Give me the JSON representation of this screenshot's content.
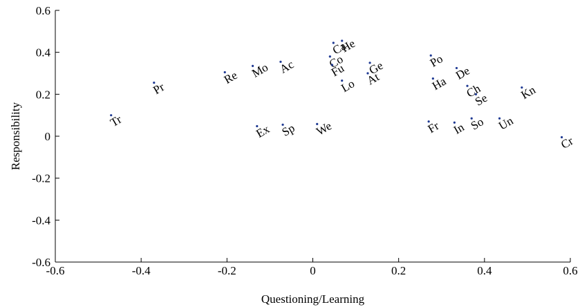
{
  "chart_data": {
    "type": "scatter",
    "xlabel": "Questioning/Learning",
    "ylabel": "Responsibility",
    "xlim": [
      -0.6,
      0.6
    ],
    "ylim": [
      -0.6,
      0.6
    ],
    "xticks": [
      -0.6,
      -0.4,
      -0.2,
      0,
      0.2,
      0.4,
      0.6
    ],
    "xtick_labels": [
      "-0.6",
      "-0.4",
      "-0.2",
      "0",
      "0.2",
      "0.4",
      "0.6"
    ],
    "yticks": [
      -0.6,
      -0.4,
      -0.2,
      0,
      0.2,
      0.4,
      0.6
    ],
    "ytick_labels": [
      "-0.6",
      "-0.4",
      "-0.2",
      "0",
      "0.2",
      "0.4",
      "0.6"
    ],
    "grid": false,
    "label_rotation": -30,
    "points": [
      {
        "label": "Tr",
        "x": -0.47,
        "y": 0.1
      },
      {
        "label": "Pr",
        "x": -0.37,
        "y": 0.255
      },
      {
        "label": "Re",
        "x": -0.205,
        "y": 0.305
      },
      {
        "label": "Mo",
        "x": -0.14,
        "y": 0.335
      },
      {
        "label": "Ac",
        "x": -0.075,
        "y": 0.355
      },
      {
        "label": "Ex",
        "x": -0.13,
        "y": 0.048
      },
      {
        "label": "Sp",
        "x": -0.07,
        "y": 0.055
      },
      {
        "label": "We",
        "x": 0.01,
        "y": 0.058
      },
      {
        "label": "Ca",
        "x": 0.048,
        "y": 0.445
      },
      {
        "label": "He",
        "x": 0.068,
        "y": 0.455
      },
      {
        "label": "Co",
        "x": 0.04,
        "y": 0.38
      },
      {
        "label": "Fu",
        "x": 0.045,
        "y": 0.34
      },
      {
        "label": "Lo",
        "x": 0.068,
        "y": 0.265
      },
      {
        "label": "At",
        "x": 0.128,
        "y": 0.3
      },
      {
        "label": "Ge",
        "x": 0.133,
        "y": 0.35
      },
      {
        "label": "Po",
        "x": 0.275,
        "y": 0.385
      },
      {
        "label": "Ha",
        "x": 0.28,
        "y": 0.275
      },
      {
        "label": "De",
        "x": 0.335,
        "y": 0.325
      },
      {
        "label": "Ch",
        "x": 0.36,
        "y": 0.24
      },
      {
        "label": "Se",
        "x": 0.38,
        "y": 0.2
      },
      {
        "label": "Kn",
        "x": 0.487,
        "y": 0.232
      },
      {
        "label": "Fr",
        "x": 0.27,
        "y": 0.07
      },
      {
        "label": "In",
        "x": 0.33,
        "y": 0.065
      },
      {
        "label": "So",
        "x": 0.37,
        "y": 0.085
      },
      {
        "label": "Un",
        "x": 0.435,
        "y": 0.085
      },
      {
        "label": "Cr",
        "x": 0.58,
        "y": -0.005
      }
    ]
  }
}
